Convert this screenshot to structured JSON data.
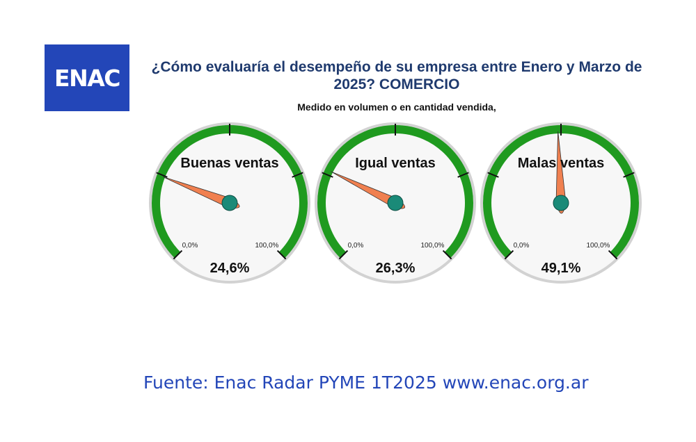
{
  "logo": {
    "text": "ENAC"
  },
  "header": {
    "title": "¿Cómo evaluaría el desempeño de su empresa entre Enero y Marzo de 2025?  COMERCIO",
    "subtitle": "Medido en volumen o en cantidad vendida,"
  },
  "chart_data": {
    "type": "gauge",
    "range": [
      0,
      100
    ],
    "min_label": "0,0%",
    "max_label": "100,0%",
    "gauges": [
      {
        "label": "Buenas ventas",
        "value": 24.6,
        "value_label": "24,6%"
      },
      {
        "label": "Igual ventas",
        "value": 26.3,
        "value_label": "26,3%"
      },
      {
        "label": "Malas ventas",
        "value": 49.1,
        "value_label": "49,1%"
      }
    ]
  },
  "colors": {
    "arc": "#1f9a1f",
    "rim": "#d2d2d2",
    "face": "#f7f7f7",
    "needle": "#f08050",
    "hub": "#1a8a78",
    "logo_bg": "#2346b8",
    "title": "#1f3a6e",
    "source": "#2346b8"
  },
  "footer": {
    "source": "Fuente: Enac Radar PYME 1T2025  www.enac.org.ar"
  }
}
